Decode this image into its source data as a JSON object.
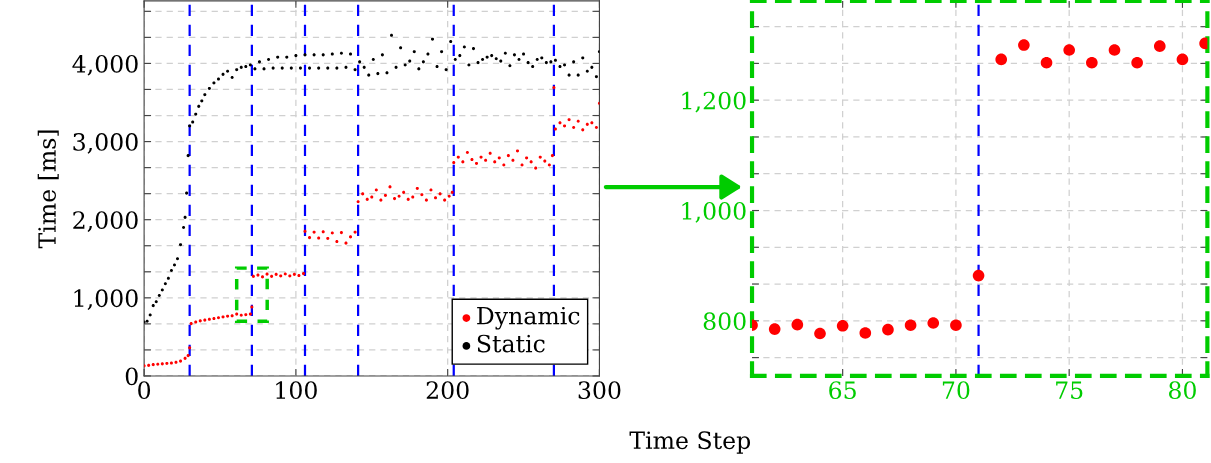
{
  "chart_data": [
    {
      "type": "scatter",
      "xlabel": "Time Step",
      "ylabel": "Time [ms]",
      "xlim": [
        0,
        300
      ],
      "xticks": [
        0,
        100,
        200,
        300
      ],
      "ylim": [
        0,
        4800
      ],
      "yticks": [
        0,
        {
          "value": 333.3,
          "label": null
        },
        {
          "value": 666.7,
          "label": null
        },
        {
          "value": 1000,
          "label": "1,000"
        },
        {
          "value": 1333.3,
          "label": null
        },
        {
          "value": 1666.7,
          "label": null
        },
        {
          "value": 2000,
          "label": "2,000"
        },
        {
          "value": 2333.3,
          "label": null
        },
        {
          "value": 2666.7,
          "label": null
        },
        {
          "value": 3000,
          "label": "3,000"
        },
        {
          "value": 3333.3,
          "label": null
        },
        {
          "value": 3666.7,
          "label": null
        },
        {
          "value": 4000,
          "label": "4,000"
        },
        {
          "value": 4333.3,
          "label": null
        },
        {
          "value": 4666.7,
          "label": null
        }
      ],
      "grid": true,
      "legend": "bottom right",
      "marker": "circle",
      "ref_lines": [
        {
          "axis": "x",
          "value": 30,
          "color": "#0000ff",
          "line_style": "dashed"
        },
        {
          "axis": "x",
          "value": 71,
          "color": "#0000ff",
          "line_style": "dashed"
        },
        {
          "axis": "x",
          "value": 106,
          "color": "#0000ff",
          "line_style": "dashed"
        },
        {
          "axis": "x",
          "value": 141,
          "color": "#0000ff",
          "line_style": "dashed"
        },
        {
          "axis": "x",
          "value": 204,
          "color": "#0000ff",
          "line_style": "dashed"
        },
        {
          "axis": "x",
          "value": 270,
          "color": "#0000ff",
          "line_style": "dashed"
        }
      ],
      "series": [
        {
          "name": "Dynamic",
          "color": "#ff0000",
          "x": [
            0,
            3,
            6,
            9,
            12,
            15,
            18,
            21,
            24,
            27,
            29,
            30,
            31,
            34,
            37,
            40,
            43,
            46,
            49,
            52,
            55,
            58,
            61,
            64,
            67,
            70,
            71,
            72,
            75,
            78,
            81,
            84,
            87,
            90,
            93,
            96,
            99,
            102,
            105,
            106,
            109,
            112,
            115,
            118,
            121,
            124,
            127,
            130,
            133,
            136,
            139,
            141,
            144,
            147,
            150,
            153,
            156,
            159,
            162,
            165,
            168,
            171,
            174,
            177,
            180,
            183,
            186,
            189,
            192,
            195,
            198,
            201,
            203,
            204,
            207,
            210,
            213,
            216,
            219,
            222,
            225,
            228,
            231,
            234,
            237,
            240,
            243,
            246,
            249,
            252,
            255,
            258,
            261,
            264,
            267,
            269,
            270,
            271,
            274,
            277,
            280,
            283,
            286,
            289,
            292,
            295,
            298,
            300
          ],
          "values": [
            130,
            135,
            145,
            150,
            155,
            160,
            165,
            175,
            190,
            225,
            260,
            360,
            670,
            690,
            705,
            715,
            725,
            735,
            745,
            755,
            765,
            770,
            792,
            777,
            784,
            792,
            882,
            1274,
            1291,
            1268,
            1303,
            1275,
            1300,
            1280,
            1305,
            1280,
            1300,
            1285,
            1310,
            1850,
            1770,
            1840,
            1765,
            1845,
            1760,
            1830,
            1720,
            1835,
            1700,
            1780,
            1840,
            2230,
            2330,
            2260,
            2290,
            2380,
            2250,
            2310,
            2420,
            2270,
            2300,
            2350,
            2260,
            2290,
            2400,
            2320,
            2250,
            2380,
            2280,
            2330,
            2250,
            2300,
            2350,
            2730,
            2800,
            2740,
            2860,
            2770,
            2720,
            2800,
            2760,
            2850,
            2740,
            2790,
            2700,
            2820,
            2760,
            2880,
            2700,
            2790,
            2740,
            2660,
            2800,
            2750,
            2700,
            2820,
            3690,
            3160,
            3240,
            3200,
            3280,
            3180,
            3260,
            3150,
            3220,
            3240,
            3180,
            3490
          ]
        },
        {
          "name": "Static",
          "color": "#000000",
          "x": [
            0,
            2,
            4,
            6,
            8,
            10,
            12,
            14,
            16,
            18,
            20,
            22,
            24,
            26,
            27,
            28,
            29,
            30,
            32,
            34,
            36,
            38,
            40,
            43,
            46,
            49,
            52,
            55,
            58,
            61,
            64,
            67,
            70,
            73,
            76,
            79,
            82,
            85,
            88,
            91,
            94,
            97,
            100,
            103,
            106,
            109,
            112,
            115,
            118,
            121,
            124,
            127,
            130,
            133,
            136,
            139,
            142,
            145,
            148,
            151,
            154,
            157,
            160,
            163,
            166,
            169,
            172,
            175,
            178,
            181,
            184,
            187,
            190,
            193,
            196,
            199,
            202,
            205,
            208,
            211,
            214,
            217,
            220,
            223,
            226,
            229,
            232,
            235,
            238,
            241,
            244,
            247,
            250,
            253,
            256,
            259,
            262,
            265,
            268,
            271,
            274,
            277,
            280,
            283,
            286,
            289,
            292,
            295,
            298,
            300
          ],
          "values": [
            690,
            700,
            780,
            900,
            950,
            1030,
            1100,
            1180,
            1250,
            1350,
            1420,
            1500,
            1680,
            1900,
            2030,
            2340,
            2820,
            3200,
            3250,
            3350,
            3450,
            3520,
            3600,
            3680,
            3750,
            3800,
            3860,
            3900,
            3820,
            3920,
            3950,
            3960,
            3980,
            3930,
            4020,
            3930,
            4050,
            3940,
            4080,
            3940,
            4080,
            3940,
            4100,
            3940,
            4110,
            3940,
            4110,
            3940,
            4110,
            3940,
            4120,
            3940,
            4130,
            3950,
            4120,
            3920,
            4020,
            3950,
            3850,
            4050,
            3870,
            4110,
            3880,
            4360,
            3950,
            4200,
            3980,
            4030,
            4150,
            3930,
            4020,
            4120,
            4310,
            3960,
            4150,
            3920,
            4280,
            4050,
            4100,
            4210,
            3980,
            4190,
            4010,
            4050,
            4080,
            4100,
            4060,
            4030,
            4130,
            3970,
            4110,
            4050,
            4120,
            4010,
            3960,
            4050,
            4070,
            4010,
            4020,
            4040,
            3960,
            3980,
            3850,
            4020,
            3850,
            4070,
            3900,
            3950,
            3830,
            4150
          ]
        }
      ]
    },
    {
      "type": "scatter",
      "xlim": [
        61,
        81.1
      ],
      "xticks": [
        65,
        70,
        75,
        80
      ],
      "ylim": [
        700,
        1380
      ],
      "yticks": [
        {
          "value": 733.3,
          "label": null
        },
        800,
        {
          "value": 866.7,
          "label": null
        },
        {
          "value": 933.3,
          "label": null
        },
        {
          "value": 1000,
          "label": "1,000"
        },
        {
          "value": 1066.7,
          "label": null
        },
        {
          "value": 1133.3,
          "label": null
        },
        {
          "value": 1200,
          "label": "1,200"
        },
        {
          "value": 1266.7,
          "label": null
        },
        {
          "value": 1333.3,
          "label": null
        }
      ],
      "grid": true,
      "marker": "circle",
      "ref_lines": [
        {
          "axis": "x",
          "value": 71,
          "color": "#0000ff",
          "line_style": "dashed"
        }
      ],
      "series": [
        {
          "color": "#ff0000",
          "x": [
            61,
            62,
            63,
            64,
            65,
            66,
            67,
            68,
            69,
            70,
            71,
            72,
            73,
            74,
            75,
            76,
            77,
            78,
            79,
            80,
            81
          ],
          "values": [
            792,
            785,
            793,
            777,
            791,
            778,
            784,
            792,
            796,
            792,
            882,
            1274,
            1300,
            1268,
            1291,
            1268,
            1291,
            1268,
            1298,
            1274,
            1303
          ]
        }
      ]
    }
  ]
}
